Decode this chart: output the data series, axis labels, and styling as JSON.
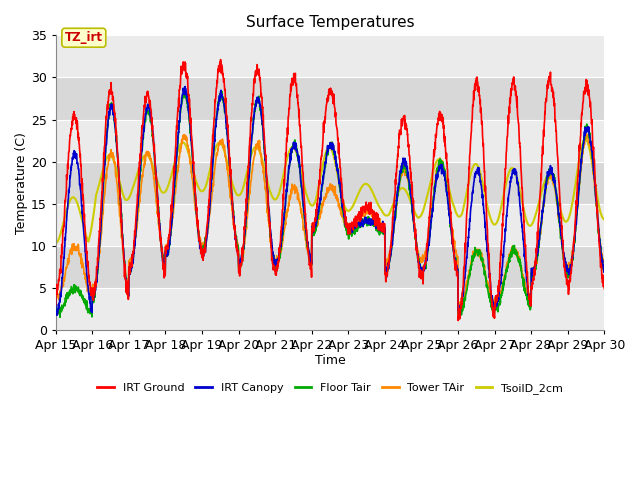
{
  "title": "Surface Temperatures",
  "xlabel": "Time",
  "ylabel": "Temperature (C)",
  "ylim": [
    0,
    35
  ],
  "xlim": [
    0,
    15
  ],
  "x_tick_labels": [
    "Apr 15",
    "Apr 16",
    "Apr 17",
    "Apr 18",
    "Apr 19",
    "Apr 20",
    "Apr 21",
    "Apr 22",
    "Apr 23",
    "Apr 24",
    "Apr 25",
    "Apr 26",
    "Apr 27",
    "Apr 28",
    "Apr 29",
    "Apr 30"
  ],
  "legend_labels": [
    "IRT Ground",
    "IRT Canopy",
    "Floor Tair",
    "Tower TAir",
    "TsoilD_2cm"
  ],
  "legend_colors": [
    "#ff0000",
    "#0000cc",
    "#00aa00",
    "#ff8800",
    "#cccc00"
  ],
  "annotation_text": "TZ_irt",
  "annotation_bg": "#ffffcc",
  "annotation_border": "#bbbb00",
  "annotation_text_color": "#cc0000",
  "bg_light": "#ebebeb",
  "bg_dark": "#d8d8d8",
  "grid_color": "#ffffff",
  "line_width": 1.2,
  "yticks": [
    0,
    5,
    10,
    15,
    20,
    25,
    30,
    35
  ]
}
